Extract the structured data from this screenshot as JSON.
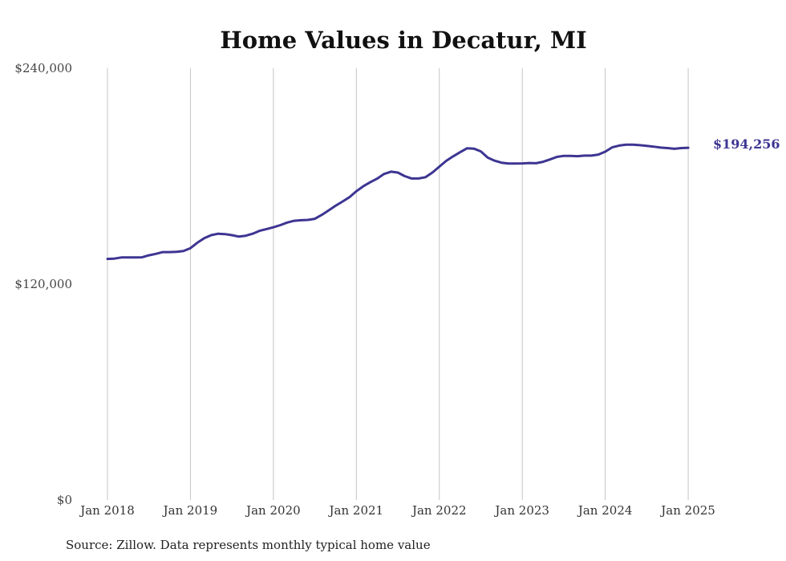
{
  "chart_data": {
    "type": "line",
    "title": "Home Values in Decatur, MI",
    "source": "Source: Zillow. Data represents monthly typical home value",
    "ylim": [
      0,
      240000
    ],
    "y_ticks": [
      {
        "value": 0,
        "label": "$0"
      },
      {
        "value": 120000,
        "label": "$120,000"
      },
      {
        "value": 240000,
        "label": "$240,000"
      }
    ],
    "x_ticks": [
      "Jan 2018",
      "Jan 2019",
      "Jan 2020",
      "Jan 2021",
      "Jan 2022",
      "Jan 2023",
      "Jan 2024",
      "Jan 2025"
    ],
    "grid": {
      "vertical": true,
      "horizontal": false
    },
    "line_color": "#3d3592",
    "end_label": "$194,256",
    "series": [
      {
        "x_start": "2018-01",
        "frequency": "monthly",
        "values": [
          134000,
          134200,
          134800,
          134800,
          134800,
          134900,
          136000,
          136800,
          137800,
          137800,
          138000,
          138400,
          140000,
          143000,
          145500,
          147200,
          148000,
          147800,
          147200,
          146400,
          146900,
          148000,
          149600,
          150600,
          151600,
          152800,
          154200,
          155200,
          155500,
          155700,
          156300,
          158500,
          161000,
          163600,
          165900,
          168300,
          171600,
          174400,
          176600,
          178600,
          181200,
          182500,
          182000,
          180000,
          178700,
          178700,
          179400,
          182000,
          185300,
          188500,
          191000,
          193300,
          195500,
          195300,
          193800,
          190300,
          188600,
          187500,
          187000,
          187000,
          187100,
          187300,
          187200,
          188000,
          189300,
          190700,
          191300,
          191300,
          191100,
          191400,
          191400,
          192000,
          193600,
          196000,
          197000,
          197500,
          197500,
          197200,
          196800,
          196400,
          195900,
          195600,
          195200,
          195600,
          195800
        ]
      }
    ]
  }
}
